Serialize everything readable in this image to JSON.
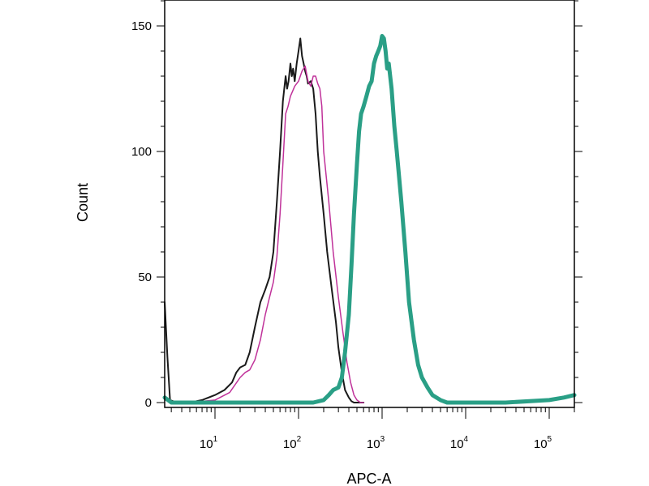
{
  "chart_data": {
    "type": "line",
    "title": "",
    "xlabel": "APC-A",
    "ylabel": "Count",
    "x_scale": "log",
    "xlim": [
      2.5,
      200000
    ],
    "ylim": [
      0,
      160
    ],
    "grid": false,
    "legend": "none",
    "y_ticks": [
      {
        "value": 0,
        "label": "0"
      },
      {
        "value": 50,
        "label": "50"
      },
      {
        "value": 100,
        "label": "100"
      },
      {
        "value": 150,
        "label": "150"
      }
    ],
    "x_ticks": [
      {
        "value": 10,
        "base": "10",
        "exp": "1"
      },
      {
        "value": 100,
        "base": "10",
        "exp": "2"
      },
      {
        "value": 1000,
        "base": "10",
        "exp": "3"
      },
      {
        "value": 10000,
        "base": "10",
        "exp": "4"
      },
      {
        "value": 100000,
        "base": "10",
        "exp": "5"
      }
    ],
    "series": [
      {
        "color": "#1a1a1a",
        "stroke_width": 2,
        "x": [
          2.5,
          2.7,
          2.9,
          3.5,
          5,
          7,
          10,
          13,
          16,
          18,
          20,
          23,
          26,
          30,
          35,
          40,
          45,
          50,
          55,
          60,
          65,
          70,
          73,
          76,
          80,
          83,
          86,
          90,
          95,
          100,
          105,
          110,
          115,
          120,
          125,
          130,
          140,
          150,
          160,
          170,
          180,
          200,
          220,
          250,
          280,
          300,
          330,
          360,
          400,
          430,
          460,
          500,
          600
        ],
        "y": [
          40,
          18,
          1,
          0,
          0,
          1,
          3,
          5,
          8,
          12,
          14,
          15,
          20,
          30,
          40,
          45,
          50,
          60,
          80,
          100,
          120,
          130,
          125,
          128,
          135,
          130,
          133,
          128,
          135,
          140,
          145,
          138,
          135,
          132,
          130,
          127,
          128,
          125,
          115,
          100,
          90,
          75,
          60,
          45,
          32,
          22,
          12,
          5,
          2,
          0.5,
          0,
          0,
          0
        ]
      },
      {
        "color": "#c0329a",
        "stroke_width": 1.5,
        "x": [
          5,
          10,
          15,
          20,
          23,
          26,
          30,
          35,
          40,
          45,
          50,
          55,
          60,
          65,
          70,
          75,
          80,
          85,
          90,
          100,
          110,
          120,
          130,
          140,
          150,
          160,
          170,
          180,
          190,
          200,
          230,
          260,
          300,
          340,
          380,
          420,
          460,
          500,
          550,
          600
        ],
        "y": [
          0,
          1,
          4,
          10,
          12,
          13,
          17,
          25,
          35,
          42,
          48,
          58,
          75,
          95,
          115,
          118,
          122,
          124,
          126,
          128,
          132,
          134,
          128,
          126,
          130,
          130,
          127,
          125,
          118,
          100,
          80,
          60,
          42,
          28,
          16,
          8,
          3,
          1,
          0,
          0
        ]
      },
      {
        "color": "#2a9f86",
        "stroke_width": 5,
        "x": [
          2.5,
          3,
          4,
          10,
          30,
          100,
          150,
          200,
          230,
          260,
          300,
          330,
          360,
          400,
          430,
          460,
          500,
          530,
          560,
          600,
          650,
          700,
          750,
          800,
          850,
          900,
          950,
          1000,
          1050,
          1100,
          1150,
          1200,
          1300,
          1400,
          1500,
          1700,
          1900,
          2100,
          2400,
          2700,
          3000,
          3500,
          4000,
          5000,
          6000,
          8000,
          10000,
          30000,
          100000,
          150000,
          200000
        ],
        "y": [
          2,
          0,
          0,
          0,
          0,
          0,
          0,
          1,
          3,
          5,
          6,
          10,
          20,
          35,
          55,
          75,
          95,
          108,
          115,
          118,
          122,
          126,
          128,
          135,
          138,
          140,
          142,
          146,
          145,
          140,
          133,
          135,
          125,
          110,
          100,
          80,
          60,
          40,
          25,
          15,
          10,
          6,
          3,
          1,
          0,
          0,
          0,
          0,
          1,
          2,
          3
        ]
      }
    ]
  }
}
